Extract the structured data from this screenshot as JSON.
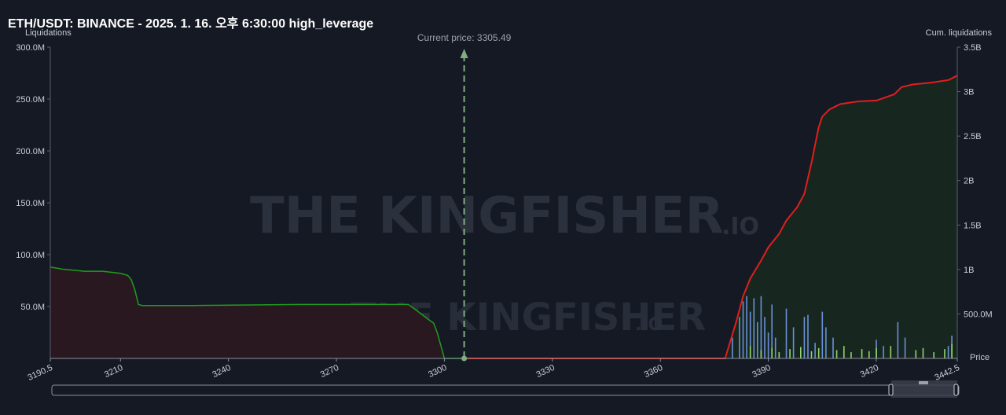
{
  "chart_data": {
    "type": "line",
    "title": "ETH/USDT: BINANCE - 2025. 1. 16. 오후 6:30:00 high_leverage",
    "y_left_title": "Liquidations",
    "y_right_title": "Cum. liquidations",
    "x_title": "Price",
    "current_price_label": "Current price: 3305.49",
    "current_price": 3305.49,
    "watermark": "THE KINGFISHER",
    "watermark_suffix": ".IO",
    "xlim": [
      3190.5,
      3442.5
    ],
    "ylim_left": [
      0,
      300000000
    ],
    "ylim_right": [
      0,
      3500000000
    ],
    "x_ticks": [
      "3190.5",
      "3210",
      "3240",
      "3270",
      "3300",
      "3330",
      "3360",
      "3390",
      "3420",
      "3442.5"
    ],
    "x_tick_values": [
      3190.5,
      3210,
      3240,
      3270,
      3300,
      3330,
      3360,
      3390,
      3420,
      3442.5
    ],
    "y_left_ticks": [
      "300.0M",
      "250.0M",
      "200.0M",
      "150.0M",
      "100.0M",
      "50.0M"
    ],
    "y_left_tick_values": [
      300000000,
      250000000,
      200000000,
      150000000,
      100000000,
      50000000
    ],
    "y_right_ticks": [
      "3.5B",
      "3B",
      "2.5B",
      "2B",
      "1.5B",
      "1B",
      "500.0M"
    ],
    "y_right_tick_values": [
      3500000000,
      3000000000,
      2500000000,
      2000000000,
      1500000000,
      1000000000,
      500000000
    ],
    "series": [
      {
        "name": "",
        "color": "#1f9d1f",
        "x": [
          3190.5,
          3194,
          3200,
          3205,
          3210,
          3212,
          3213,
          3214,
          3215,
          3216,
          3230,
          3260,
          3290,
          3292,
          3295,
          3297,
          3298,
          3300,
          3302,
          3305.49
        ],
        "values": [
          88000000,
          86000000,
          84000000,
          84000000,
          82000000,
          80000000,
          76000000,
          66000000,
          52000000,
          51000000,
          51000000,
          52000000,
          52000000,
          47000000,
          39000000,
          34000000,
          25000000,
          0,
          0,
          0
        ]
      },
      {
        "name": "",
        "color": "#e01e1e",
        "x": [
          3305.49,
          3330,
          3360,
          3378,
          3381,
          3383,
          3385,
          3388,
          3390,
          3393,
          3395,
          3398,
          3400,
          3402,
          3404,
          3405,
          3407,
          3410,
          3415,
          3420,
          3425,
          3427,
          3430,
          3435,
          3440,
          3442.5
        ],
        "values": [
          0,
          0,
          0,
          0,
          400000000,
          700000000,
          900000000,
          1100000000,
          1250000000,
          1400000000,
          1550000000,
          1700000000,
          1850000000,
          2200000000,
          2600000000,
          2720000000,
          2800000000,
          2860000000,
          2890000000,
          2900000000,
          2970000000,
          3050000000,
          3080000000,
          3100000000,
          3130000000,
          3180000000
        ]
      }
    ],
    "bar_series": {
      "blue_x": [
        3380,
        3382,
        3383,
        3384,
        3385,
        3386,
        3387,
        3388,
        3389,
        3390,
        3391,
        3392,
        3395,
        3397,
        3400,
        3401,
        3403,
        3405,
        3406,
        3408,
        3420,
        3422,
        3426,
        3428,
        3440,
        3441
      ],
      "blue_values": [
        20000000,
        40000000,
        55000000,
        60000000,
        45000000,
        58000000,
        35000000,
        60000000,
        40000000,
        25000000,
        52000000,
        20000000,
        48000000,
        30000000,
        40000000,
        42000000,
        15000000,
        45000000,
        30000000,
        20000000,
        18000000,
        12000000,
        35000000,
        20000000,
        12000000,
        22000000
      ],
      "green_x": [
        3385,
        3388,
        3391,
        3393,
        3396,
        3399,
        3402,
        3404,
        3409,
        3411,
        3413,
        3416,
        3418,
        3420,
        3424,
        3431,
        3433,
        3436,
        3439,
        3441
      ],
      "green_values": [
        12000000,
        8000000,
        10000000,
        6000000,
        9000000,
        11000000,
        7000000,
        10000000,
        8000000,
        12000000,
        6000000,
        9000000,
        7000000,
        10000000,
        12000000,
        8000000,
        10000000,
        6000000,
        9000000,
        14000000
      ],
      "blue_color": "#6b8fd6",
      "green_color": "#8fd46b"
    },
    "grid": false
  }
}
